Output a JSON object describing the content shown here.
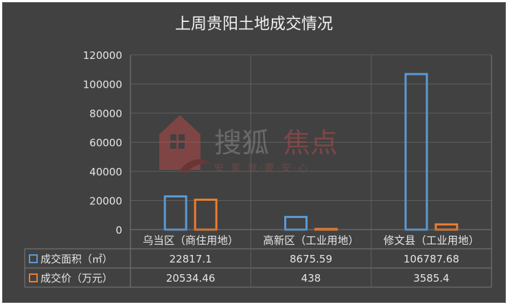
{
  "chart_data": {
    "type": "bar",
    "title": "上周贵阳土地成交情况",
    "categories": [
      "乌当区（商住用地）",
      "高新区（工业用地）",
      "修文县（工业用地）"
    ],
    "series": [
      {
        "name": "成交面积（㎡）",
        "values": [
          22817.1,
          8675.59,
          106787.68
        ],
        "value_labels": [
          "22817.1",
          "8675.59",
          "106787.68"
        ],
        "color": "#5b9bd5"
      },
      {
        "name": "成交价（万元）",
        "values": [
          20534.46,
          438,
          3585.4
        ],
        "value_labels": [
          "20534.46",
          "438",
          "3585.4"
        ],
        "color": "#ed7d31"
      }
    ],
    "ylim": [
      0,
      120000
    ],
    "yticks": [
      0,
      20000,
      40000,
      60000,
      80000,
      100000,
      120000
    ],
    "grid": true,
    "legend": "data-table"
  },
  "watermark": {
    "brand_text": "搜狐",
    "brand_accent_text": "焦点",
    "slogan": "安·家·就·要·安·心"
  }
}
